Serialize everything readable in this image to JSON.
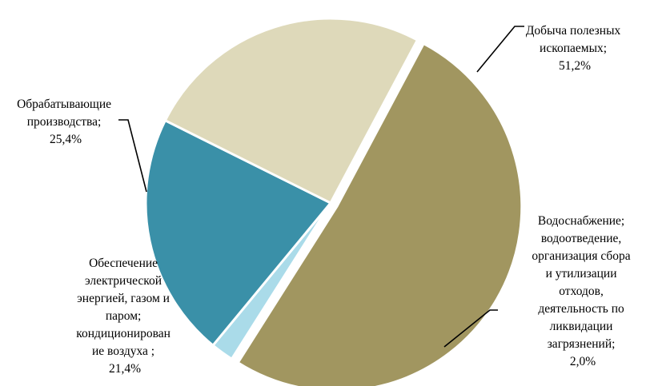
{
  "chart_data": {
    "type": "pie",
    "title": "",
    "slices": [
      {
        "label_lines": [
          "Добыча полезных",
          "ископаемых;",
          "51,2%"
        ],
        "category": "Добыча полезных ископаемых",
        "value": 51.2,
        "value_text": "51,2%",
        "color": "#a19660",
        "exploded": true
      },
      {
        "label_lines": [
          "Водоснабжение;",
          "водоотведение,",
          "организация сбора",
          "и утилизации",
          "отходов,",
          "деятельность по",
          "ликвидации",
          "загрязнений;",
          "2,0%"
        ],
        "category": "Водоснабжение; водоотведение, организация сбора и утилизации отходов, деятельность по ликвидации загрязнений",
        "value": 2.0,
        "value_text": "2,0%",
        "color": "#aadbe9",
        "exploded": false
      },
      {
        "label_lines": [
          "Обеспечение",
          "электрической",
          "энергией, газом и",
          "паром;",
          "кондиционирован",
          "ие воздуха ;",
          "21,4%"
        ],
        "category": "Обеспечение электрической энергией, газом и паром; кондиционирование воздуха",
        "value": 21.4,
        "value_text": "21,4%",
        "color": "#3a90a8",
        "exploded": false
      },
      {
        "label_lines": [
          "Обрабатывающие",
          "производства;",
          "25,4%"
        ],
        "category": "Обрабатывающие производства",
        "value": 25.4,
        "value_text": "25,4%",
        "color": "#ded9ba",
        "exploded": false
      }
    ],
    "legend": "none",
    "labels": "outside with leader lines"
  }
}
